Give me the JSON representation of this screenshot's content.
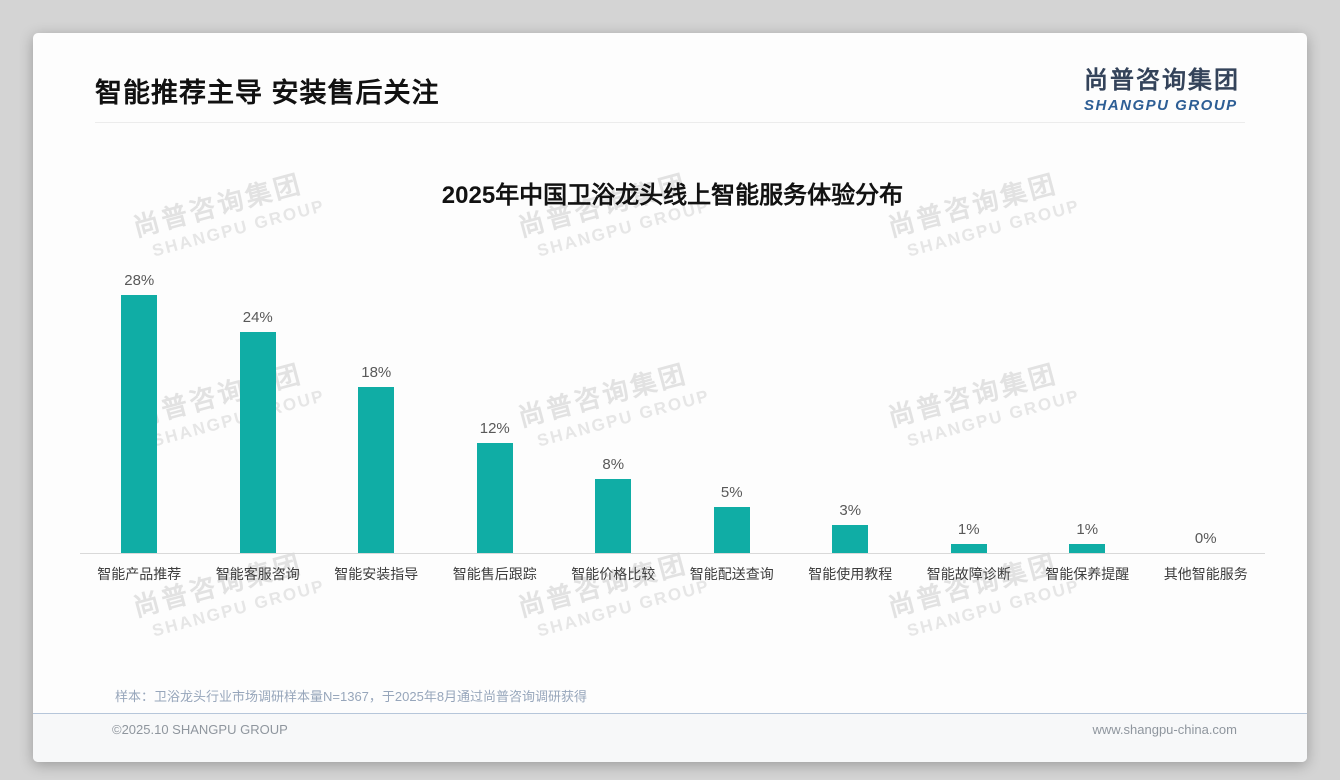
{
  "slide": {
    "title": "智能推荐主导 安装售后关注",
    "logo": {
      "cn": "尚普咨询集团",
      "en": "SHANGPU GROUP"
    },
    "watermark": {
      "cn": "尚普咨询集团",
      "en": "SHANGPU GROUP"
    },
    "footnote": "样本：卫浴龙头行业市场调研样本量N=1367，于2025年8月通过尚普咨询调研获得",
    "footer_left": "©2025.10 SHANGPU GROUP",
    "footer_right": "www.shangpu-china.com"
  },
  "colors": {
    "bar": "#10ada5",
    "logo_cn": "#34435a",
    "logo_en": "#2d5e95",
    "value_label": "#595959",
    "category_label": "#3d3d3d",
    "footnote": "#97a6bb"
  },
  "chart_data": {
    "type": "bar",
    "title": "2025年中国卫浴龙头线上智能服务体验分布",
    "categories": [
      "智能产品推荐",
      "智能客服咨询",
      "智能安装指导",
      "智能售后跟踪",
      "智能价格比较",
      "智能配送查询",
      "智能使用教程",
      "智能故障诊断",
      "智能保养提醒",
      "其他智能服务"
    ],
    "values": [
      28,
      24,
      18,
      12,
      8,
      5,
      3,
      1,
      1,
      0
    ],
    "value_labels": [
      "28%",
      "24%",
      "18%",
      "12%",
      "8%",
      "5%",
      "3%",
      "1%",
      "1%",
      "0%"
    ],
    "unit": "%",
    "xlabel": "",
    "ylabel": "",
    "ylim": [
      0,
      30
    ],
    "bar_color": "#10ada5",
    "grid": false,
    "legend": false
  }
}
